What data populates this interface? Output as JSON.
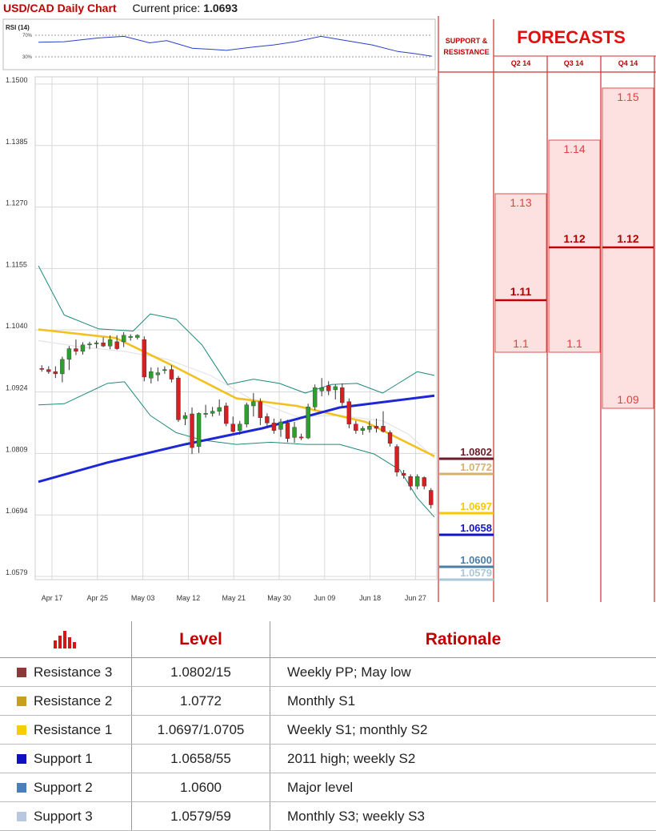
{
  "header": {
    "title": "USD/CAD Daily Chart",
    "price_label": "Current price:",
    "price_value": "1.0693"
  },
  "rsi": {
    "label": "RSI (14)",
    "levels": [
      "70%",
      "30%"
    ]
  },
  "panel": {
    "sr_title": [
      "SUPPORT &",
      "RESISTANCE"
    ],
    "forecasts_title": "FORECASTS",
    "quarters": [
      "Q2 14",
      "Q3 14",
      "Q4 14"
    ]
  },
  "chart_data": {
    "type": "candlestick",
    "ylim": [
      1.0579,
      1.15
    ],
    "y_ticks": [
      "1.1500",
      "1.1385",
      "1.1270",
      "1.1155",
      "1.1040",
      "1.0924",
      "1.0809",
      "1.0694",
      "1.0579"
    ],
    "x_ticks": [
      "Apr 17",
      "Apr 25",
      "May 03",
      "May 12",
      "May 21",
      "May 30",
      "Jun 09",
      "Jun 18",
      "Jun 27"
    ],
    "candles": [
      [
        1.0968,
        1.0974,
        1.0962,
        1.0967
      ],
      [
        1.0966,
        1.0972,
        1.0958,
        1.0962
      ],
      [
        1.0962,
        1.0972,
        1.095,
        1.0958
      ],
      [
        1.0958,
        1.099,
        1.0942,
        1.0985
      ],
      [
        1.0985,
        1.101,
        1.0965,
        1.1005
      ],
      [
        1.1005,
        1.1022,
        1.0993,
        1.1
      ],
      [
        1.1,
        1.1017,
        1.0994,
        1.1012
      ],
      [
        1.1012,
        1.1018,
        1.1004,
        1.1014
      ],
      [
        1.1014,
        1.102,
        1.1006,
        1.1016
      ],
      [
        1.1016,
        1.1026,
        1.1008,
        1.101
      ],
      [
        1.101,
        1.103,
        1.1004,
        1.1022
      ],
      [
        1.1018,
        1.103,
        1.1003,
        1.1005
      ],
      [
        1.1018,
        1.1036,
        1.1008,
        1.103
      ],
      [
        1.1026,
        1.1032,
        1.102,
        1.1028
      ],
      [
        1.1026,
        1.1032,
        1.1022,
        1.103
      ],
      [
        1.1022,
        1.1028,
        1.0944,
        1.0952
      ],
      [
        1.095,
        1.097,
        1.094,
        1.0962
      ],
      [
        1.0956,
        1.097,
        1.0944,
        1.096
      ],
      [
        1.0964,
        1.0972,
        1.0958,
        1.0966
      ],
      [
        1.0966,
        1.0974,
        1.0942,
        1.0948
      ],
      [
        1.095,
        1.0954,
        1.0868,
        1.0872
      ],
      [
        1.0874,
        1.0886,
        1.0862,
        1.088
      ],
      [
        1.0883,
        1.0895,
        1.0808,
        1.082
      ],
      [
        1.0822,
        1.0886,
        1.081,
        1.0884
      ],
      [
        1.0884,
        1.09,
        1.0876,
        1.0884
      ],
      [
        1.0884,
        1.0896,
        1.0878,
        1.0888
      ],
      [
        1.0888,
        1.091,
        1.088,
        1.0895
      ],
      [
        1.0898,
        1.0904,
        1.086,
        1.0865
      ],
      [
        1.0864,
        1.0878,
        1.0848,
        1.085
      ],
      [
        1.0852,
        1.087,
        1.0844,
        1.0864
      ],
      [
        1.0864,
        1.0904,
        1.0858,
        1.09
      ],
      [
        1.0898,
        1.0922,
        1.0878,
        1.0906
      ],
      [
        1.0906,
        1.0912,
        1.0862,
        1.0876
      ],
      [
        1.0878,
        1.0884,
        1.086,
        1.0866
      ],
      [
        1.0866,
        1.0874,
        1.0846,
        1.0852
      ],
      [
        1.0854,
        1.0874,
        1.084,
        1.0868
      ],
      [
        1.0866,
        1.0872,
        1.083,
        1.0837
      ],
      [
        1.0839,
        1.0868,
        1.0829,
        1.0858
      ],
      [
        1.084,
        1.0846,
        1.0834,
        1.0838
      ],
      [
        1.0838,
        1.0902,
        1.0836,
        1.0896
      ],
      [
        1.0896,
        1.0938,
        1.089,
        1.0932
      ],
      [
        1.0926,
        1.095,
        1.0916,
        1.0932
      ],
      [
        1.0936,
        1.0944,
        1.0918,
        1.0926
      ],
      [
        1.0928,
        1.0938,
        1.091,
        1.0934
      ],
      [
        1.0932,
        1.094,
        1.0898,
        1.0904
      ],
      [
        1.0906,
        1.0912,
        1.0856,
        1.0864
      ],
      [
        1.0864,
        1.087,
        1.0846,
        1.0852
      ],
      [
        1.0852,
        1.086,
        1.0844,
        1.0856
      ],
      [
        1.0854,
        1.087,
        1.0848,
        1.086
      ],
      [
        1.086,
        1.0874,
        1.0848,
        1.0856
      ],
      [
        1.086,
        1.0888,
        1.0848,
        1.085
      ],
      [
        1.0848,
        1.0852,
        1.0822,
        1.0828
      ],
      [
        1.0822,
        1.0826,
        1.0766,
        1.0774
      ],
      [
        1.0772,
        1.0778,
        1.0762,
        1.0768
      ],
      [
        1.0766,
        1.077,
        1.074,
        1.0748
      ],
      [
        1.0748,
        1.077,
        1.0742,
        1.0766
      ],
      [
        1.0764,
        1.0766,
        1.0742,
        1.0748
      ],
      [
        1.074,
        1.0744,
        1.0706,
        1.0713
      ]
    ],
    "ma_yellow": [
      [
        0,
        1.1041
      ],
      [
        18,
        1.1025
      ],
      [
        30,
        1.0978
      ],
      [
        46,
        1.0912
      ],
      [
        60,
        1.0898
      ],
      [
        76,
        1.0868
      ],
      [
        92,
        1.0804
      ]
    ],
    "ma_blue": [
      [
        0,
        1.0756
      ],
      [
        16,
        1.0792
      ],
      [
        34,
        1.0826
      ],
      [
        52,
        1.0856
      ],
      [
        70,
        1.0895
      ],
      [
        92,
        1.0917
      ]
    ],
    "bb_upper": [
      [
        0,
        1.116
      ],
      [
        6,
        1.1068
      ],
      [
        14,
        1.1042
      ],
      [
        22,
        1.1038
      ],
      [
        26,
        1.107
      ],
      [
        32,
        1.106
      ],
      [
        38,
        1.1012
      ],
      [
        44,
        1.0938
      ],
      [
        50,
        1.0948
      ],
      [
        56,
        1.094
      ],
      [
        62,
        1.0922
      ],
      [
        68,
        1.0938
      ],
      [
        74,
        1.094
      ],
      [
        80,
        1.0922
      ],
      [
        88,
        1.0962
      ],
      [
        92,
        1.0955
      ]
    ],
    "bb_mid": [
      [
        0,
        1.102
      ],
      [
        10,
        1.1008
      ],
      [
        20,
        1.1
      ],
      [
        30,
        1.0985
      ],
      [
        40,
        1.0955
      ],
      [
        50,
        1.0908
      ],
      [
        60,
        1.0878
      ],
      [
        70,
        1.088
      ],
      [
        80,
        1.087
      ],
      [
        86,
        1.0845
      ],
      [
        92,
        1.08
      ]
    ],
    "bb_lower": [
      [
        0,
        1.09
      ],
      [
        6,
        1.0902
      ],
      [
        16,
        1.094
      ],
      [
        20,
        1.0943
      ],
      [
        26,
        1.088
      ],
      [
        32,
        1.0848
      ],
      [
        38,
        1.0834
      ],
      [
        46,
        1.0826
      ],
      [
        54,
        1.083
      ],
      [
        62,
        1.0826
      ],
      [
        70,
        1.0826
      ],
      [
        78,
        1.0808
      ],
      [
        84,
        1.0778
      ],
      [
        88,
        1.0726
      ],
      [
        92,
        1.069
      ]
    ],
    "rsi_values": [
      [
        0,
        57
      ],
      [
        6,
        58
      ],
      [
        14,
        65
      ],
      [
        20,
        68
      ],
      [
        26,
        56
      ],
      [
        30,
        60
      ],
      [
        36,
        46
      ],
      [
        40,
        44
      ],
      [
        44,
        42
      ],
      [
        50,
        48
      ],
      [
        55,
        52
      ],
      [
        60,
        58
      ],
      [
        66,
        68
      ],
      [
        72,
        60
      ],
      [
        78,
        52
      ],
      [
        84,
        40
      ],
      [
        88,
        36
      ],
      [
        92,
        31
      ]
    ],
    "support_resistance": [
      {
        "value": "1.0802",
        "color": "#6d1a2a"
      },
      {
        "value": "1.0772",
        "color": "#d4b26a"
      },
      {
        "value": "1.0697",
        "color": "#f5c800"
      },
      {
        "value": "1.0658",
        "color": "#1515c8"
      },
      {
        "value": "1.0600",
        "color": "#4a7fa8"
      },
      {
        "value": "1.0579",
        "color": "#a8c8d8"
      }
    ],
    "forecasts": {
      "Q2 14": [
        {
          "value": "1.13",
          "bold": false
        },
        {
          "value": "1.11",
          "bold": true
        },
        {
          "value": "1.1",
          "bold": false
        }
      ],
      "Q3 14": [
        {
          "value": "1.14",
          "bold": false
        },
        {
          "value": "1.12",
          "bold": true
        },
        {
          "value": "1.1",
          "bold": false
        }
      ],
      "Q4 14": [
        {
          "value": "1.15",
          "bold": false
        },
        {
          "value": "1.12",
          "bold": true
        },
        {
          "value": "1.09",
          "bold": false
        }
      ]
    }
  },
  "levels_table": {
    "headers": {
      "level": "Level",
      "rationale": "Rationale"
    },
    "icon": "bar-chart-icon",
    "rows": [
      {
        "name": "Resistance 3",
        "level": "1.0802/15",
        "rationale": "Weekly PP; May low",
        "color": "#8b3a3a"
      },
      {
        "name": "Resistance 2",
        "level": "1.0772",
        "rationale": "Monthly S1",
        "color": "#c8a020"
      },
      {
        "name": "Resistance 1",
        "level": "1.0697/1.0705",
        "rationale": "Weekly S1; monthly S2",
        "color": "#f5d000"
      },
      {
        "name": "Support 1",
        "level": "1.0658/55",
        "rationale": "2011 high; weekly S2",
        "color": "#1010c0"
      },
      {
        "name": "Support 2",
        "level": "1.0600",
        "rationale": "Major level",
        "color": "#4a7fb8"
      },
      {
        "name": "Support 3",
        "level": "1.0579/59",
        "rationale": "Monthly S3; weekly S3",
        "color": "#b8c8e0"
      }
    ]
  }
}
